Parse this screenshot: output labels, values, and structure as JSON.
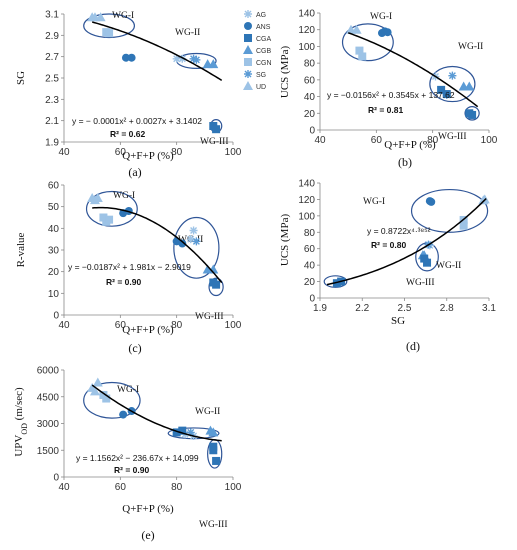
{
  "colors": {
    "lightBlue": "#9dc3e6",
    "midBlue": "#5b9bd5",
    "darkBlue": "#2e75b6",
    "ring": "#2f5597",
    "curve": "#000000"
  },
  "legend": [
    {
      "label": "AG",
      "marker": "asterisk",
      "color": "#9dc3e6"
    },
    {
      "label": "ANS",
      "marker": "circle",
      "color": "#2e75b6"
    },
    {
      "label": "CGA",
      "marker": "square",
      "color": "#2e75b6"
    },
    {
      "label": "CGB",
      "marker": "triangle",
      "color": "#5b9bd5"
    },
    {
      "label": "CGN",
      "marker": "square",
      "color": "#9dc3e6"
    },
    {
      "label": "SG",
      "marker": "asterisk",
      "color": "#5b9bd5"
    },
    {
      "label": "UD",
      "marker": "triangle",
      "color": "#9dc3e6"
    }
  ],
  "chart_data": [
    {
      "panel": "(a)",
      "type": "scatter",
      "xlabel": "Q+F+P (%)",
      "ylabel": "SG",
      "xlim": [
        40,
        100
      ],
      "ylim": [
        1.9,
        3.1
      ],
      "xticks": [
        "40",
        "60",
        "80",
        "100"
      ],
      "yticks": [
        "1.9",
        "2.1",
        "2.3",
        "2.5",
        "2.7",
        "2.9",
        "3.1"
      ],
      "equation": "y = − 0.0001x² + 0.0027x + 3.1402",
      "r2": "R² = 0.62",
      "fit": {
        "a": -0.0001,
        "b": 0.0027,
        "c": 3.1402,
        "x": [
          50,
          96
        ]
      },
      "groups": [
        {
          "label": "WG-I",
          "ellipse": {
            "cx": 56,
            "cy": 2.99,
            "rx": 9,
            "ry": 0.11
          }
        },
        {
          "label": "WG-II",
          "ellipse": {
            "cx": 87,
            "cy": 2.66,
            "rx": 7,
            "ry": 0.07
          }
        },
        {
          "label": "WG-III",
          "ellipse": {
            "cx": 94,
            "cy": 2.05,
            "rx": 2,
            "ry": 0.06
          }
        }
      ],
      "series": [
        {
          "name": "UD",
          "points": [
            [
              50,
              3.07
            ],
            [
              51,
              3.07
            ],
            [
              53,
              3.07
            ]
          ]
        },
        {
          "name": "CGN",
          "points": [
            [
              55,
              2.93
            ],
            [
              56,
              2.92
            ]
          ]
        },
        {
          "name": "ANS",
          "points": [
            [
              62,
              2.69
            ],
            [
              64,
              2.69
            ]
          ]
        },
        {
          "name": "AG",
          "points": [
            [
              80,
              2.68
            ],
            [
              82,
              2.68
            ]
          ]
        },
        {
          "name": "SG",
          "points": [
            [
              86,
              2.68
            ],
            [
              87,
              2.67
            ]
          ]
        },
        {
          "name": "CGB",
          "points": [
            [
              91,
              2.63
            ],
            [
              93,
              2.63
            ]
          ]
        },
        {
          "name": "CGA",
          "points": [
            [
              93,
              2.05
            ],
            [
              94,
              2.02
            ]
          ]
        }
      ]
    },
    {
      "panel": "(b)",
      "type": "scatter",
      "xlabel": "Q+F+P (%)",
      "ylabel": "UCS (MPa)",
      "xlim": [
        40,
        100
      ],
      "ylim": [
        0,
        140
      ],
      "xticks": [
        "40",
        "60",
        "80",
        "100"
      ],
      "yticks": [
        "0",
        "20",
        "40",
        "60",
        "80",
        "100",
        "120",
        "140"
      ],
      "equation": "y = −0.0156x² + 0.3545x + 137.62",
      "r2": "R² = 0.81",
      "fit": {
        "a": -0.0156,
        "b": 0.3545,
        "c": 137.62,
        "x": [
          50,
          96
        ]
      },
      "groups": [
        {
          "label": "WG-I",
          "ellipse": {
            "cx": 57,
            "cy": 105,
            "rx": 9,
            "ry": 22
          }
        },
        {
          "label": "WG-II",
          "ellipse": {
            "cx": 87,
            "cy": 55,
            "rx": 8,
            "ry": 21
          }
        },
        {
          "label": "WG-III",
          "ellipse": {
            "cx": 94,
            "cy": 20,
            "rx": 2.5,
            "ry": 8
          }
        }
      ],
      "series": [
        {
          "name": "UD",
          "points": [
            [
              51,
              120
            ],
            [
              53,
              120
            ]
          ]
        },
        {
          "name": "CGN",
          "points": [
            [
              54,
              95
            ],
            [
              55,
              88
            ]
          ]
        },
        {
          "name": "ANS",
          "points": [
            [
              62,
              116
            ],
            [
              63,
              118
            ],
            [
              64,
              117
            ]
          ]
        },
        {
          "name": "AG",
          "points": [
            [
              81,
              64
            ]
          ]
        },
        {
          "name": "SG",
          "points": [
            [
              87,
              65
            ],
            [
              85,
              42
            ]
          ]
        },
        {
          "name": "CGB",
          "points": [
            [
              91,
              52
            ],
            [
              93,
              52
            ]
          ]
        },
        {
          "name": "CGA",
          "points": [
            [
              83,
              48
            ],
            [
              85,
              43
            ],
            [
              93,
              20
            ],
            [
              94,
              18
            ]
          ]
        }
      ]
    },
    {
      "panel": "(c)",
      "type": "scatter",
      "xlabel": "Q+F+P (%)",
      "ylabel": "R-value",
      "xlim": [
        40,
        100
      ],
      "ylim": [
        0,
        60
      ],
      "xticks": [
        "40",
        "60",
        "80",
        "100"
      ],
      "yticks": [
        "0",
        "10",
        "20",
        "30",
        "40",
        "50",
        "60"
      ],
      "equation": "y = −0.0187x² + 1.981x − 2.9019",
      "r2": "R² = 0.90",
      "fit": {
        "a": -0.0187,
        "b": 1.981,
        "c": -2.9019,
        "x": [
          50,
          96
        ]
      },
      "groups": [
        {
          "label": "WG-I",
          "ellipse": {
            "cx": 57,
            "cy": 49,
            "rx": 9,
            "ry": 8
          }
        },
        {
          "label": "WG-II",
          "ellipse": {
            "cx": 87,
            "cy": 31,
            "rx": 8,
            "ry": 14
          }
        },
        {
          "label": "WG-III",
          "ellipse": {
            "cx": 94,
            "cy": 13,
            "rx": 2.5,
            "ry": 4
          }
        }
      ],
      "series": [
        {
          "name": "UD",
          "points": [
            [
              50,
              54
            ],
            [
              51,
              53
            ],
            [
              52,
              54
            ]
          ]
        },
        {
          "name": "CGN",
          "points": [
            [
              54,
              45
            ],
            [
              55,
              43
            ],
            [
              56,
              44
            ]
          ]
        },
        {
          "name": "ANS",
          "points": [
            [
              61,
              47
            ],
            [
              63,
              48
            ]
          ]
        },
        {
          "name": "AG",
          "points": [
            [
              85,
              35
            ],
            [
              86,
              39
            ]
          ]
        },
        {
          "name": "SG",
          "points": [
            [
              87,
              34
            ]
          ]
        },
        {
          "name": "CGB",
          "points": [
            [
              91,
              21
            ],
            [
              93,
              21
            ]
          ]
        },
        {
          "name": "CGA",
          "points": [
            [
              93,
              15
            ],
            [
              94,
              14
            ]
          ]
        },
        {
          "name": "ANS",
          "points": [
            [
              80,
              34
            ],
            [
              82,
              33
            ]
          ]
        }
      ]
    },
    {
      "panel": "(d)",
      "type": "scatter",
      "xlabel": "SG",
      "ylabel": "UCS (MPa)",
      "xlim": [
        1.9,
        3.1
      ],
      "ylim": [
        0,
        140
      ],
      "xticks": [
        "1.9",
        "2.2",
        "2.5",
        "2.8",
        "3.1"
      ],
      "yticks": [
        "0",
        "20",
        "40",
        "60",
        "80",
        "100",
        "120",
        "140"
      ],
      "equation": "y = 0.8722x⁴·³⁸⁵²",
      "r2": "R² = 0.80",
      "fit": {
        "power": true,
        "a": 0.8722,
        "b": 4.3852,
        "x": [
          1.95,
          3.08
        ]
      },
      "groups": [
        {
          "label": "WG-I",
          "ellipse": {
            "cx": 2.82,
            "cy": 106,
            "rx": 0.27,
            "ry": 26
          }
        },
        {
          "label": "WG-II",
          "ellipse": {
            "cx": 2.66,
            "cy": 50,
            "rx": 0.08,
            "ry": 17
          }
        },
        {
          "label": "WG-III",
          "ellipse": {
            "cx": 2.01,
            "cy": 20,
            "rx": 0.08,
            "ry": 7
          }
        }
      ],
      "series": [
        {
          "name": "ANS",
          "points": [
            [
              2.68,
              118
            ],
            [
              2.69,
              117
            ]
          ]
        },
        {
          "name": "CGN",
          "points": [
            [
              2.92,
              95
            ],
            [
              2.92,
              88
            ]
          ]
        },
        {
          "name": "UD",
          "points": [
            [
              3.07,
              120
            ],
            [
              3.06,
              119
            ]
          ]
        },
        {
          "name": "AG",
          "points": [
            [
              2.68,
              64
            ]
          ]
        },
        {
          "name": "SG",
          "points": [
            [
              2.67,
              65
            ]
          ]
        },
        {
          "name": "CGB",
          "points": [
            [
              2.63,
              52
            ],
            [
              2.64,
              52
            ]
          ]
        },
        {
          "name": "CGA",
          "points": [
            [
              2.05,
              20
            ],
            [
              2.02,
              18
            ],
            [
              2.64,
              48
            ],
            [
              2.66,
              43
            ]
          ]
        }
      ]
    },
    {
      "panel": "(e)",
      "type": "scatter",
      "xlabel": "Q+F+P (%)",
      "ylabel": "UPV",
      "ylabel_sub": "OD",
      "ylabel_unit": " (m/sec)",
      "xlim": [
        40,
        100
      ],
      "ylim": [
        0,
        6000
      ],
      "xticks": [
        "40",
        "60",
        "80",
        "100"
      ],
      "yticks": [
        "0",
        "1500",
        "3000",
        "4500",
        "6000"
      ],
      "equation": "y = 1.1562x² − 236.67x + 14,099",
      "r2": "R² = 0.90",
      "fit": {
        "a": 1.1562,
        "b": -236.67,
        "c": 14099,
        "x": [
          50,
          96
        ]
      },
      "groups": [
        {
          "label": "WG-I",
          "ellipse": {
            "cx": 57,
            "cy": 4300,
            "rx": 10,
            "ry": 1000
          }
        },
        {
          "label": "WG-II",
          "ellipse": {
            "cx": 86,
            "cy": 2450,
            "rx": 9,
            "ry": 300
          }
        },
        {
          "label": "WG-III",
          "ellipse": {
            "cx": 93.5,
            "cy": 1300,
            "rx": 2.5,
            "ry": 800
          }
        }
      ],
      "series": [
        {
          "name": "UD",
          "points": [
            [
              50,
              5000
            ],
            [
              52,
              5300
            ],
            [
              51,
              4800
            ]
          ]
        },
        {
          "name": "CGN",
          "points": [
            [
              54,
              4600
            ],
            [
              55,
              4400
            ]
          ]
        },
        {
          "name": "ANS",
          "points": [
            [
              61,
              3500
            ],
            [
              64,
              3700
            ]
          ]
        },
        {
          "name": "AG",
          "points": [
            [
              83,
              2400
            ],
            [
              86,
              2300
            ]
          ]
        },
        {
          "name": "SG",
          "points": [
            [
              85,
              2500
            ]
          ]
        },
        {
          "name": "CGB",
          "points": [
            [
              92,
              2600
            ],
            [
              93,
              2500
            ]
          ]
        },
        {
          "name": "CGA",
          "points": [
            [
              80,
              2500
            ],
            [
              82,
              2600
            ],
            [
              93,
              1700
            ],
            [
              94,
              900
            ],
            [
              93,
              1500
            ]
          ]
        }
      ]
    }
  ]
}
